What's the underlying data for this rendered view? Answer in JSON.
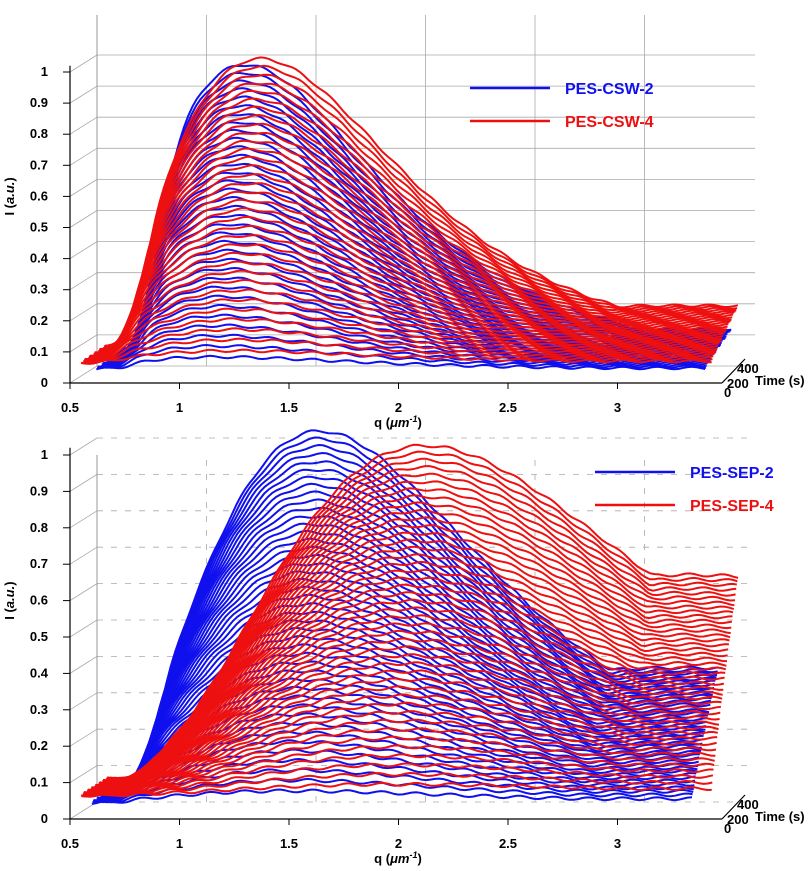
{
  "chart_data": [
    {
      "type": "line",
      "panel": "top",
      "title": "",
      "xlabel": "q (μm-1)",
      "xlabel_parts": {
        "prefix": "q (",
        "unit_base": "μm",
        "unit_exp": "-1",
        "suffix": ")"
      },
      "ylabel": "I (a.u.)",
      "ylabel_parts": {
        "prefix": "I (",
        "unit": "a.u.",
        "suffix": ")"
      },
      "zlabel": "Time (s)",
      "xlim": [
        0.5,
        3.5
      ],
      "ylim": [
        0,
        1.05
      ],
      "zlim": [
        0,
        450
      ],
      "x_ticks": [
        "0.5",
        "1",
        "1.5",
        "2",
        "2.5",
        "3"
      ],
      "y_ticks": [
        "0",
        "0.1",
        "0.2",
        "0.3",
        "0.4",
        "0.5",
        "0.6",
        "0.7",
        "0.8",
        "0.9",
        "1"
      ],
      "z_ticks": [
        "0",
        "200",
        "400"
      ],
      "grid": true,
      "grid_style": "solid",
      "legend_position": "top-right",
      "series": [
        {
          "name": "PES-CSW-2",
          "color": "#1010ee",
          "q_start": 0.62,
          "q_end": 3.42,
          "peak_q": 1.18,
          "peak_I": 0.97,
          "tail_I": 0.08,
          "n_curves": 34
        },
        {
          "name": "PES-CSW-4",
          "color": "#ee1010",
          "q_start": 0.55,
          "q_end": 3.45,
          "peak_q": 1.25,
          "peak_I": 0.99,
          "tail_I": 0.14,
          "n_curves": 34
        }
      ]
    },
    {
      "type": "line",
      "panel": "bottom",
      "title": "",
      "xlabel": "q (μm-1)",
      "xlabel_parts": {
        "prefix": "q (",
        "unit_base": "μm",
        "unit_exp": "-1",
        "suffix": ")"
      },
      "ylabel": "I (a.u.)",
      "ylabel_parts": {
        "prefix": "I (",
        "unit": "a.u.",
        "suffix": ")"
      },
      "zlabel": "Time (s)",
      "xlim": [
        0.5,
        3.5
      ],
      "ylim": [
        0,
        1.05
      ],
      "zlim": [
        0,
        450
      ],
      "x_ticks": [
        "0.5",
        "1",
        "1.5",
        "2",
        "2.5",
        "3"
      ],
      "y_ticks": [
        "0",
        "0.1",
        "0.2",
        "0.3",
        "0.4",
        "0.5",
        "0.6",
        "0.7",
        "0.8",
        "0.9",
        "1"
      ],
      "z_ticks": [
        "0",
        "200",
        "400"
      ],
      "grid": true,
      "grid_style": "dashed",
      "legend_position": "top-right",
      "series": [
        {
          "name": "PES-SEP-2",
          "color": "#1010ee",
          "q_start": 0.6,
          "q_end": 3.35,
          "peak_q": 1.52,
          "peak_I": 1.02,
          "tail_I": 0.34,
          "n_curves": 44
        },
        {
          "name": "PES-SEP-4",
          "color": "#ee1010",
          "q_start": 0.55,
          "q_end": 3.45,
          "peak_q": 2.0,
          "peak_I": 0.98,
          "tail_I": 0.6,
          "n_curves": 44
        }
      ]
    }
  ]
}
